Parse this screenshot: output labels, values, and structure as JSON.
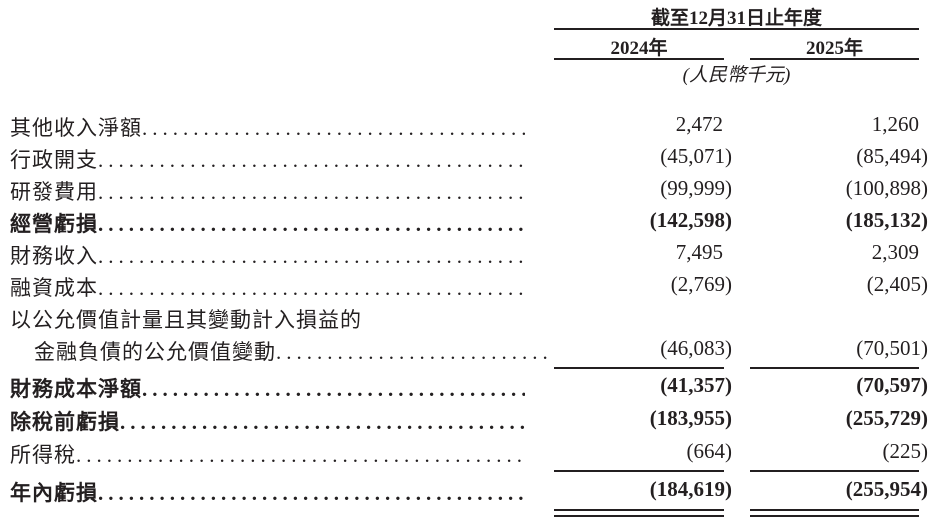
{
  "header": {
    "period": "截至12月31日止年度",
    "years": [
      "2024年",
      "2025年"
    ],
    "unit": "(人民幣千元)"
  },
  "rows": [
    {
      "label": "其他收入淨額",
      "v2024": "2,472",
      "v2025": "1,260",
      "bold": false
    },
    {
      "label": "行政開支",
      "v2024": "(45,071)",
      "v2025": "(85,494)",
      "bold": false
    },
    {
      "label": "研發費用",
      "v2024": "(99,999)",
      "v2025": "(100,898)",
      "bold": false
    },
    {
      "label": "經營虧損",
      "v2024": "(142,598)",
      "v2025": "(185,132)",
      "bold": true
    },
    {
      "label": "財務收入",
      "v2024": "7,495",
      "v2025": "2,309",
      "bold": false
    },
    {
      "label": "融資成本",
      "v2024": "(2,769)",
      "v2025": "(2,405)",
      "bold": false
    },
    {
      "label": "以公允價值計量且其變動計入損益的",
      "v2024": "",
      "v2025": "",
      "bold": false
    },
    {
      "label": "金融負債的公允價值變動",
      "v2024": "(46,083)",
      "v2025": "(70,501)",
      "bold": false
    },
    {
      "label": "財務成本淨額",
      "v2024": "(41,357)",
      "v2025": "(70,597)",
      "bold": true
    },
    {
      "label": "除稅前虧損",
      "v2024": "(183,955)",
      "v2025": "(255,729)",
      "bold": true
    },
    {
      "label": "所得稅",
      "v2024": "(664)",
      "v2025": "(225)",
      "bold": false
    },
    {
      "label": "年內虧損",
      "v2024": "(184,619)",
      "v2025": "(255,954)",
      "bold": true
    }
  ]
}
